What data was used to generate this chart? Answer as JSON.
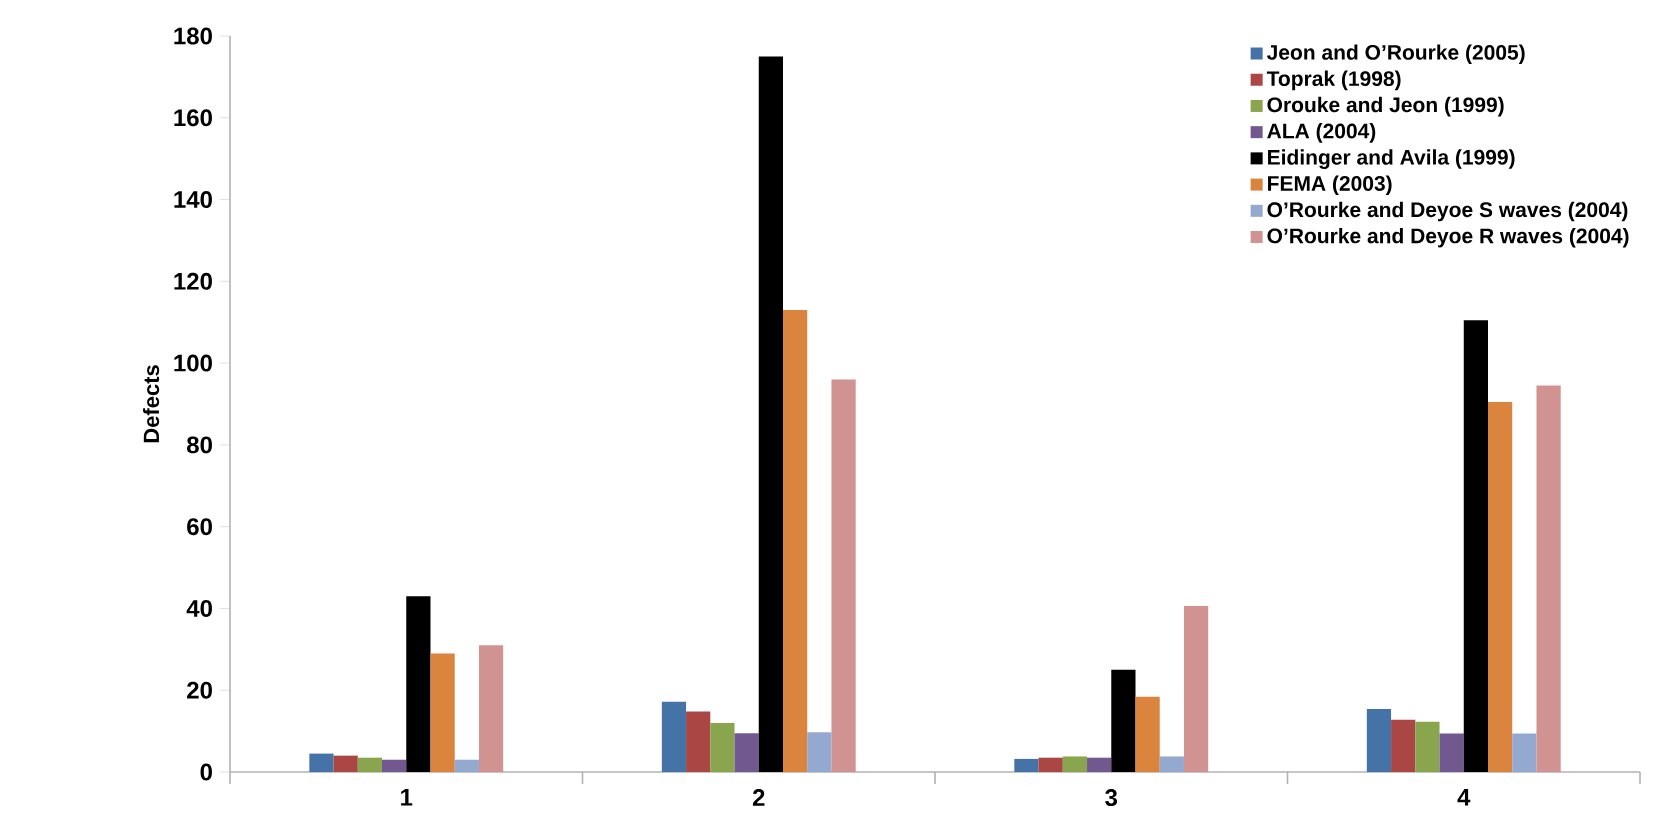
{
  "chart_data": {
    "type": "bar",
    "ylabel": "Defects",
    "categories": [
      "1",
      "2",
      "3",
      "4"
    ],
    "ylim": [
      0,
      180
    ],
    "yticks": [
      0,
      20,
      40,
      60,
      80,
      100,
      120,
      140,
      160,
      180
    ],
    "legend": "top right",
    "grid": false,
    "series": [
      {
        "name": "Jeon and O’Rourke (2005)",
        "color": "#4572a7",
        "values": [
          4.5,
          17.2,
          3.2,
          15.4
        ]
      },
      {
        "name": "Toprak (1998)",
        "color": "#aa4643",
        "values": [
          4,
          14.8,
          3.5,
          12.8
        ]
      },
      {
        "name": "Orouke and Jeon (1999)",
        "color": "#89a54e",
        "values": [
          3.5,
          12,
          3.8,
          12.3
        ]
      },
      {
        "name": "ALA (2004)",
        "color": "#71588f",
        "values": [
          3,
          9.5,
          3.5,
          9.4
        ]
      },
      {
        "name": "Eidinger and Avila (1999)",
        "color": "#000000",
        "values": [
          43,
          175,
          25,
          110.5
        ]
      },
      {
        "name": "FEMA (2003)",
        "color": "#db843d",
        "values": [
          29,
          113,
          18.4,
          90.5
        ]
      },
      {
        "name": "O’Rourke and Deyoe S waves (2004)",
        "color": "#93a9cf",
        "values": [
          3,
          9.7,
          3.8,
          9.4
        ]
      },
      {
        "name": "O’Rourke and Deyoe R waves (2004)",
        "color": "#d19392",
        "values": [
          31,
          96,
          40.6,
          94.5
        ]
      }
    ]
  }
}
